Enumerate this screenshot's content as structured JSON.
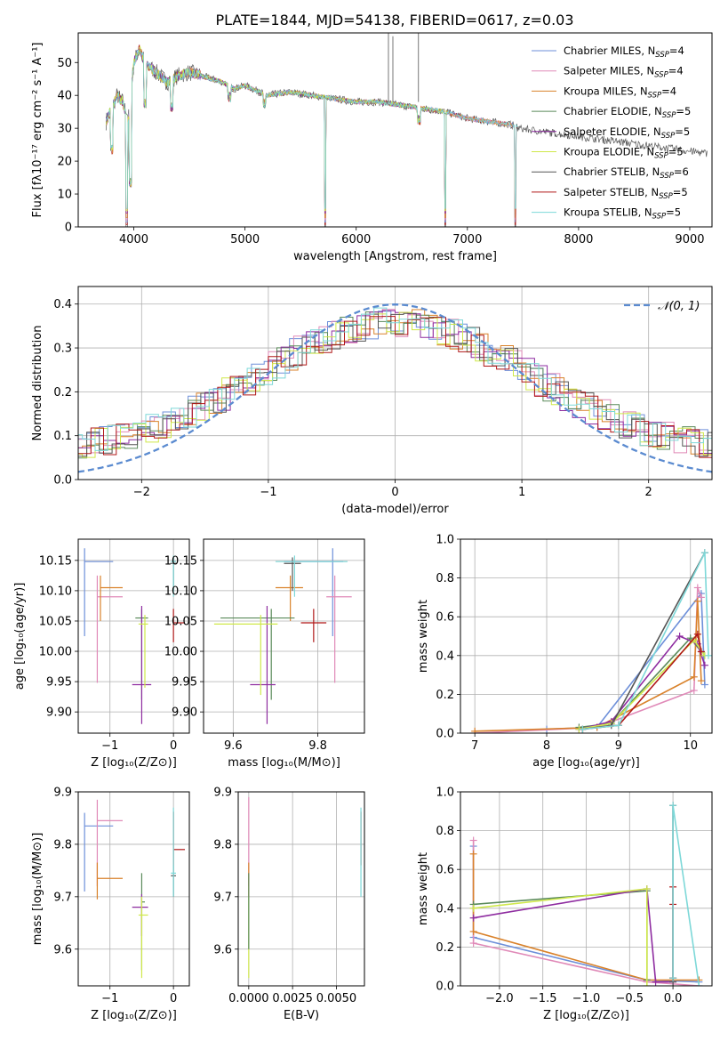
{
  "title": "PLATE=1844, MJD=54138, FIBERID=0617, z=0.03",
  "colors": {
    "chabrier_miles": "#6d8fd9",
    "salpeter_miles": "#e08ab8",
    "kroupa_miles": "#d9822b",
    "chabrier_elodie": "#5a8a5a",
    "salpeter_elodie": "#8e2ca0",
    "kroupa_elodie": "#cfe84a",
    "chabrier_stelib": "#555555",
    "salpeter_stelib": "#b01818",
    "kroupa_stelib": "#7dd8d8",
    "gauss": "#5b8bd0"
  },
  "series": [
    {
      "key": "chabrier_miles",
      "label_pre": "Chabrier MILES, N",
      "label_post": "=4"
    },
    {
      "key": "salpeter_miles",
      "label_pre": "Salpeter MILES, N",
      "label_post": "=4"
    },
    {
      "key": "kroupa_miles",
      "label_pre": "Kroupa MILES, N",
      "label_post": "=4"
    },
    {
      "key": "chabrier_elodie",
      "label_pre": "Chabrier ELODIE, N",
      "label_post": "=5"
    },
    {
      "key": "salpeter_elodie",
      "label_pre": "Salpeter ELODIE, N",
      "label_post": "=5"
    },
    {
      "key": "kroupa_elodie",
      "label_pre": "Kroupa ELODIE, N",
      "label_post": "=5"
    },
    {
      "key": "chabrier_stelib",
      "label_pre": "Chabrier STELIB, N",
      "label_post": "=6"
    },
    {
      "key": "salpeter_stelib",
      "label_pre": "Salpeter STELIB, N",
      "label_post": "=5"
    },
    {
      "key": "kroupa_stelib",
      "label_pre": "Kroupa STELIB, N",
      "label_post": "=5"
    }
  ],
  "chart_data": [
    {
      "id": "spectrum",
      "type": "line",
      "title": "PLATE=1844, MJD=54138, FIBERID=0617, z=0.03",
      "xlabel": "wavelength [Angstrom, rest frame]",
      "ylabel": "Flux [fλ10⁻¹⁷ erg cm⁻² s⁻¹ A⁻¹]",
      "xlim": [
        3500,
        9200
      ],
      "ylim": [
        0,
        59
      ],
      "xticks": [
        4000,
        5000,
        6000,
        7000,
        8000,
        9000
      ],
      "yticks": [
        0,
        10,
        20,
        30,
        40,
        50
      ],
      "legend_subscript": "SSP",
      "grid": false,
      "legend": "top-right",
      "envelope": [
        [
          3750,
          32
        ],
        [
          3800,
          36
        ],
        [
          3850,
          40
        ],
        [
          3900,
          38
        ],
        [
          3950,
          32
        ],
        [
          4000,
          50
        ],
        [
          4050,
          54
        ],
        [
          4100,
          50
        ],
        [
          4200,
          47
        ],
        [
          4300,
          44
        ],
        [
          4400,
          46
        ],
        [
          4500,
          47
        ],
        [
          4600,
          46
        ],
        [
          4700,
          45
        ],
        [
          4800,
          44
        ],
        [
          4900,
          42
        ],
        [
          5000,
          43
        ],
        [
          5200,
          40
        ],
        [
          5400,
          41
        ],
        [
          5600,
          40
        ],
        [
          5800,
          39
        ],
        [
          6000,
          38
        ],
        [
          6200,
          38
        ],
        [
          6400,
          37
        ],
        [
          6600,
          36
        ],
        [
          6800,
          35
        ],
        [
          7000,
          33
        ],
        [
          7200,
          32
        ],
        [
          7400,
          31
        ],
        [
          7500,
          30
        ]
      ],
      "dips": [
        [
          3800,
          22
        ],
        [
          3935,
          0
        ],
        [
          3970,
          12
        ],
        [
          4100,
          36
        ],
        [
          4340,
          35
        ],
        [
          4861,
          38
        ],
        [
          5175,
          36
        ],
        [
          5720,
          0
        ],
        [
          6563,
          31
        ],
        [
          6800,
          0
        ],
        [
          7430,
          0
        ]
      ]
    },
    {
      "id": "residuals",
      "type": "histogram",
      "xlabel": "(data-model)/error",
      "ylabel": "Normed distribution",
      "xlim": [
        -2.5,
        2.5
      ],
      "ylim": [
        0,
        0.44
      ],
      "xticks": [
        -2,
        -1,
        0,
        1,
        2
      ],
      "yticks": [
        0.0,
        0.1,
        0.2,
        0.3,
        0.4
      ],
      "grid": true,
      "gauss_label": "𝒩(0, 1)",
      "legend": "top-right"
    },
    {
      "id": "age_vs_Z",
      "type": "errorbar",
      "xlabel": "Z [log₁₀(Z/Z⊙)]",
      "ylabel": "age  [log₁₀(age/yr)]",
      "xlim": [
        -1.5,
        0.25
      ],
      "ylim": [
        9.865,
        10.185
      ],
      "xticks": [
        -1,
        0
      ],
      "yticks": [
        9.9,
        9.95,
        10.0,
        10.05,
        10.1,
        10.15
      ],
      "grid": true,
      "points": [
        {
          "key": "chabrier_miles",
          "x": -1.4,
          "y": 10.148,
          "xlo": -1.4,
          "xhi": -0.95,
          "ylo": 10.025,
          "yhi": 10.17
        },
        {
          "key": "salpeter_miles",
          "x": -1.2,
          "y": 10.09,
          "xlo": -1.2,
          "xhi": -0.8,
          "ylo": 9.948,
          "yhi": 10.125
        },
        {
          "key": "kroupa_miles",
          "x": -1.15,
          "y": 10.105,
          "xlo": -1.15,
          "xhi": -0.8,
          "ylo": 10.05,
          "yhi": 10.125
        },
        {
          "key": "chabrier_elodie",
          "x": -0.5,
          "y": 10.055,
          "xlo": -0.6,
          "xhi": -0.4,
          "ylo": 9.92,
          "yhi": 10.07
        },
        {
          "key": "salpeter_elodie",
          "x": -0.5,
          "y": 9.945,
          "xlo": -0.65,
          "xhi": -0.35,
          "ylo": 9.88,
          "yhi": 10.075
        },
        {
          "key": "kroupa_elodie",
          "x": -0.45,
          "y": 10.045,
          "xlo": -0.55,
          "xhi": -0.4,
          "ylo": 9.94,
          "yhi": 10.06
        },
        {
          "key": "chabrier_stelib",
          "x": 0.0,
          "y": 10.145,
          "xlo": -0.05,
          "xhi": 0.05,
          "ylo": 10.1,
          "yhi": 10.155
        },
        {
          "key": "salpeter_stelib",
          "x": 0.0,
          "y": 10.047,
          "xlo": 0.0,
          "xhi": 0.18,
          "ylo": 10.015,
          "yhi": 10.07
        },
        {
          "key": "kroupa_stelib",
          "x": 0.0,
          "y": 10.148,
          "xlo": -0.04,
          "xhi": 0.04,
          "ylo": 10.09,
          "yhi": 10.158
        }
      ]
    },
    {
      "id": "age_vs_mass",
      "type": "errorbar",
      "xlabel": "mass [log₁₀(M/M⊙)]",
      "ylabel": "",
      "xlim": [
        9.53,
        9.91
      ],
      "ylim": [
        9.865,
        10.185
      ],
      "xticks": [
        9.6,
        9.8
      ],
      "yticks": [
        9.9,
        9.95,
        10.0,
        10.05,
        10.1,
        10.15
      ],
      "grid": true,
      "points": [
        {
          "key": "chabrier_miles",
          "x": 9.835,
          "y": 10.148,
          "xlo": 9.72,
          "xhi": 9.86,
          "ylo": 10.025,
          "yhi": 10.17
        },
        {
          "key": "salpeter_miles",
          "x": 9.84,
          "y": 10.09,
          "xlo": 9.82,
          "xhi": 9.88,
          "ylo": 9.948,
          "yhi": 10.125
        },
        {
          "key": "kroupa_miles",
          "x": 9.735,
          "y": 10.105,
          "xlo": 9.7,
          "xhi": 9.765,
          "ylo": 10.05,
          "yhi": 10.125
        },
        {
          "key": "chabrier_elodie",
          "x": 9.69,
          "y": 10.055,
          "xlo": 9.57,
          "xhi": 9.745,
          "ylo": 9.92,
          "yhi": 10.07
        },
        {
          "key": "salpeter_elodie",
          "x": 9.68,
          "y": 9.945,
          "xlo": 9.64,
          "xhi": 9.7,
          "ylo": 9.88,
          "yhi": 10.075
        },
        {
          "key": "kroupa_elodie",
          "x": 9.665,
          "y": 10.045,
          "xlo": 9.555,
          "xhi": 9.705,
          "ylo": 9.928,
          "yhi": 10.06
        },
        {
          "key": "chabrier_stelib",
          "x": 9.74,
          "y": 10.145,
          "xlo": 9.72,
          "xhi": 9.76,
          "ylo": 10.1,
          "yhi": 10.155
        },
        {
          "key": "salpeter_stelib",
          "x": 9.79,
          "y": 10.047,
          "xlo": 9.76,
          "xhi": 9.82,
          "ylo": 10.015,
          "yhi": 10.07
        },
        {
          "key": "kroupa_stelib",
          "x": 9.745,
          "y": 10.148,
          "xlo": 9.7,
          "xhi": 9.87,
          "ylo": 10.09,
          "yhi": 10.158
        }
      ]
    },
    {
      "id": "weight_vs_age",
      "type": "line",
      "xlabel": "age  [log₁₀(age/yr)]",
      "ylabel": "mass weight",
      "xlim": [
        6.8,
        10.3
      ],
      "ylim": [
        0,
        1.0
      ],
      "xticks": [
        7,
        8,
        9,
        10
      ],
      "yticks": [
        0.0,
        0.2,
        0.4,
        0.6,
        0.8,
        1.0
      ],
      "grid": true,
      "lines": [
        {
          "key": "chabrier_miles",
          "x": [
            8.0,
            8.7,
            10.15,
            10.2
          ],
          "y": [
            0.02,
            0.03,
            0.72,
            0.25
          ]
        },
        {
          "key": "salpeter_miles",
          "x": [
            7.0,
            8.7,
            10.05,
            10.1,
            10.15
          ],
          "y": [
            0.0,
            0.03,
            0.22,
            0.75,
            0.7
          ]
        },
        {
          "key": "kroupa_miles",
          "x": [
            7.0,
            8.7,
            10.05,
            10.1,
            10.15
          ],
          "y": [
            0.01,
            0.03,
            0.29,
            0.68,
            0.27
          ]
        },
        {
          "key": "chabrier_elodie",
          "x": [
            8.45,
            8.9,
            10.0,
            10.15
          ],
          "y": [
            0.03,
            0.05,
            0.49,
            0.42
          ]
        },
        {
          "key": "salpeter_elodie",
          "x": [
            8.45,
            8.9,
            9.85,
            10.1,
            10.2
          ],
          "y": [
            0.02,
            0.06,
            0.5,
            0.46,
            0.35
          ]
        },
        {
          "key": "kroupa_elodie",
          "x": [
            8.45,
            8.9,
            10.05,
            10.2
          ],
          "y": [
            0.02,
            0.05,
            0.48,
            0.4
          ]
        },
        {
          "key": "chabrier_stelib",
          "x": [
            8.5,
            8.9,
            10.2
          ],
          "y": [
            0.02,
            0.04,
            0.93
          ]
        },
        {
          "key": "salpeter_stelib",
          "x": [
            8.5,
            9.0,
            10.1,
            10.15
          ],
          "y": [
            0.02,
            0.04,
            0.51,
            0.42
          ]
        },
        {
          "key": "kroupa_stelib",
          "x": [
            8.5,
            9.0,
            10.2,
            10.25
          ],
          "y": [
            0.02,
            0.04,
            0.93,
            0.4
          ]
        }
      ]
    },
    {
      "id": "mass_vs_Z",
      "type": "errorbar",
      "xlabel": "Z [log₁₀(Z/Z⊙)]",
      "ylabel": "mass [log₁₀(M/M⊙)]",
      "xlim": [
        -1.5,
        0.25
      ],
      "ylim": [
        9.53,
        9.9
      ],
      "xticks": [
        -1,
        0
      ],
      "yticks": [
        9.6,
        9.7,
        9.8,
        9.9
      ],
      "grid": true,
      "points": [
        {
          "key": "chabrier_miles",
          "x": -1.4,
          "y": 9.835,
          "xlo": -1.4,
          "xhi": -0.95,
          "ylo": 9.71,
          "yhi": 9.86
        },
        {
          "key": "salpeter_miles",
          "x": -1.2,
          "y": 9.845,
          "xlo": -1.2,
          "xhi": -0.8,
          "ylo": 9.72,
          "yhi": 9.885
        },
        {
          "key": "kroupa_miles",
          "x": -1.2,
          "y": 9.735,
          "xlo": -1.2,
          "xhi": -0.8,
          "ylo": 9.695,
          "yhi": 9.765
        },
        {
          "key": "chabrier_elodie",
          "x": -0.5,
          "y": 9.69,
          "xlo": -0.5,
          "xhi": -0.45,
          "ylo": 9.56,
          "yhi": 9.745
        },
        {
          "key": "salpeter_elodie",
          "x": -0.5,
          "y": 9.68,
          "xlo": -0.65,
          "xhi": -0.4,
          "ylo": 9.625,
          "yhi": 9.705
        },
        {
          "key": "kroupa_elodie",
          "x": -0.5,
          "y": 9.665,
          "xlo": -0.55,
          "xhi": -0.4,
          "ylo": 9.545,
          "yhi": 9.7
        },
        {
          "key": "chabrier_stelib",
          "x": 0.0,
          "y": 9.74,
          "xlo": -0.04,
          "xhi": 0.04,
          "ylo": 9.7,
          "yhi": 9.76
        },
        {
          "key": "salpeter_stelib",
          "x": 0.0,
          "y": 9.79,
          "xlo": 0.0,
          "xhi": 0.18,
          "ylo": 9.76,
          "yhi": 9.862
        },
        {
          "key": "kroupa_stelib",
          "x": 0.0,
          "y": 9.745,
          "xlo": -0.04,
          "xhi": 0.04,
          "ylo": 9.7,
          "yhi": 9.87
        }
      ]
    },
    {
      "id": "mass_vs_ebv",
      "type": "errorbar",
      "xlabel": "E(B-V)",
      "ylabel": "",
      "xlim": [
        -0.0006,
        0.0066
      ],
      "ylim": [
        9.53,
        9.9
      ],
      "xticks": [
        0.0,
        0.0025,
        0.005
      ],
      "xtick_labels": [
        "0.0000",
        "0.0025",
        "0.0050"
      ],
      "yticks": [
        9.6,
        9.7,
        9.8,
        9.9
      ],
      "grid": true,
      "points": [
        {
          "key": "salpeter_miles",
          "x": 0.0,
          "y": 9.8,
          "xlo": 0.0,
          "xhi": 0.0,
          "ylo": 9.72,
          "yhi": 9.89
        },
        {
          "key": "kroupa_miles",
          "x": 0.0,
          "y": 9.735,
          "xlo": 0.0,
          "xhi": 0.0,
          "ylo": 9.7,
          "yhi": 9.765
        },
        {
          "key": "kroupa_elodie",
          "x": 0.0,
          "y": 9.665,
          "xlo": 0.0,
          "xhi": 0.0,
          "ylo": 9.545,
          "yhi": 9.7
        },
        {
          "key": "chabrier_elodie",
          "x": 0.0,
          "y": 9.69,
          "xlo": 0.0,
          "xhi": 0.0,
          "ylo": 9.6,
          "yhi": 9.745
        },
        {
          "key": "salpeter_stelib",
          "x": 0.0064,
          "y": 9.79,
          "xlo": 0.0064,
          "xhi": 0.0064,
          "ylo": 9.76,
          "yhi": 9.862
        },
        {
          "key": "kroupa_stelib",
          "x": 0.0064,
          "y": 9.745,
          "xlo": 0.0064,
          "xhi": 0.0064,
          "ylo": 9.7,
          "yhi": 9.87
        }
      ]
    },
    {
      "id": "weight_vs_Z",
      "type": "line",
      "xlabel": "Z [log₁₀(Z/Z⊙)]",
      "ylabel": "mass weight",
      "xlim": [
        -2.45,
        0.45
      ],
      "ylim": [
        0,
        1.0
      ],
      "xticks": [
        -2.0,
        -1.5,
        -1.0,
        -0.5,
        0.0
      ],
      "xtick_labels": [
        "−2.0",
        "−1.5",
        "−1.0",
        "−0.5",
        "0.0"
      ],
      "yticks": [
        0.0,
        0.2,
        0.4,
        0.6,
        0.8,
        1.0
      ],
      "grid": true,
      "lines": [
        {
          "key": "chabrier_miles",
          "x": [
            -2.3,
            -2.3,
            -0.3,
            0.3
          ],
          "y": [
            0.72,
            0.25,
            0.03,
            0.02
          ]
        },
        {
          "key": "salpeter_miles",
          "x": [
            -2.3,
            -2.3,
            -0.3,
            0.3
          ],
          "y": [
            0.75,
            0.22,
            0.02,
            0.0
          ]
        },
        {
          "key": "kroupa_miles",
          "x": [
            -2.3,
            -2.3,
            -0.3,
            0.3
          ],
          "y": [
            0.68,
            0.28,
            0.03,
            0.03
          ]
        },
        {
          "key": "chabrier_elodie",
          "x": [
            -2.3,
            -0.3,
            -0.3
          ],
          "y": [
            0.42,
            0.49,
            0.03
          ]
        },
        {
          "key": "salpeter_elodie",
          "x": [
            -2.3,
            -0.3,
            -0.2,
            0.0
          ],
          "y": [
            0.35,
            0.5,
            0.02,
            0.02
          ]
        },
        {
          "key": "kroupa_elodie",
          "x": [
            -2.3,
            -0.3,
            -0.3
          ],
          "y": [
            0.4,
            0.5,
            0.0
          ]
        },
        {
          "key": "chabrier_stelib",
          "x": [
            0.0,
            0.0,
            0.0
          ],
          "y": [
            0.04,
            0.93,
            0.02
          ]
        },
        {
          "key": "salpeter_stelib",
          "x": [
            0.0,
            0.0,
            0.0
          ],
          "y": [
            0.51,
            0.42,
            0.04
          ]
        },
        {
          "key": "kroupa_stelib",
          "x": [
            0.0,
            0.0,
            0.3
          ],
          "y": [
            0.04,
            0.93,
            0.0
          ]
        }
      ]
    }
  ]
}
